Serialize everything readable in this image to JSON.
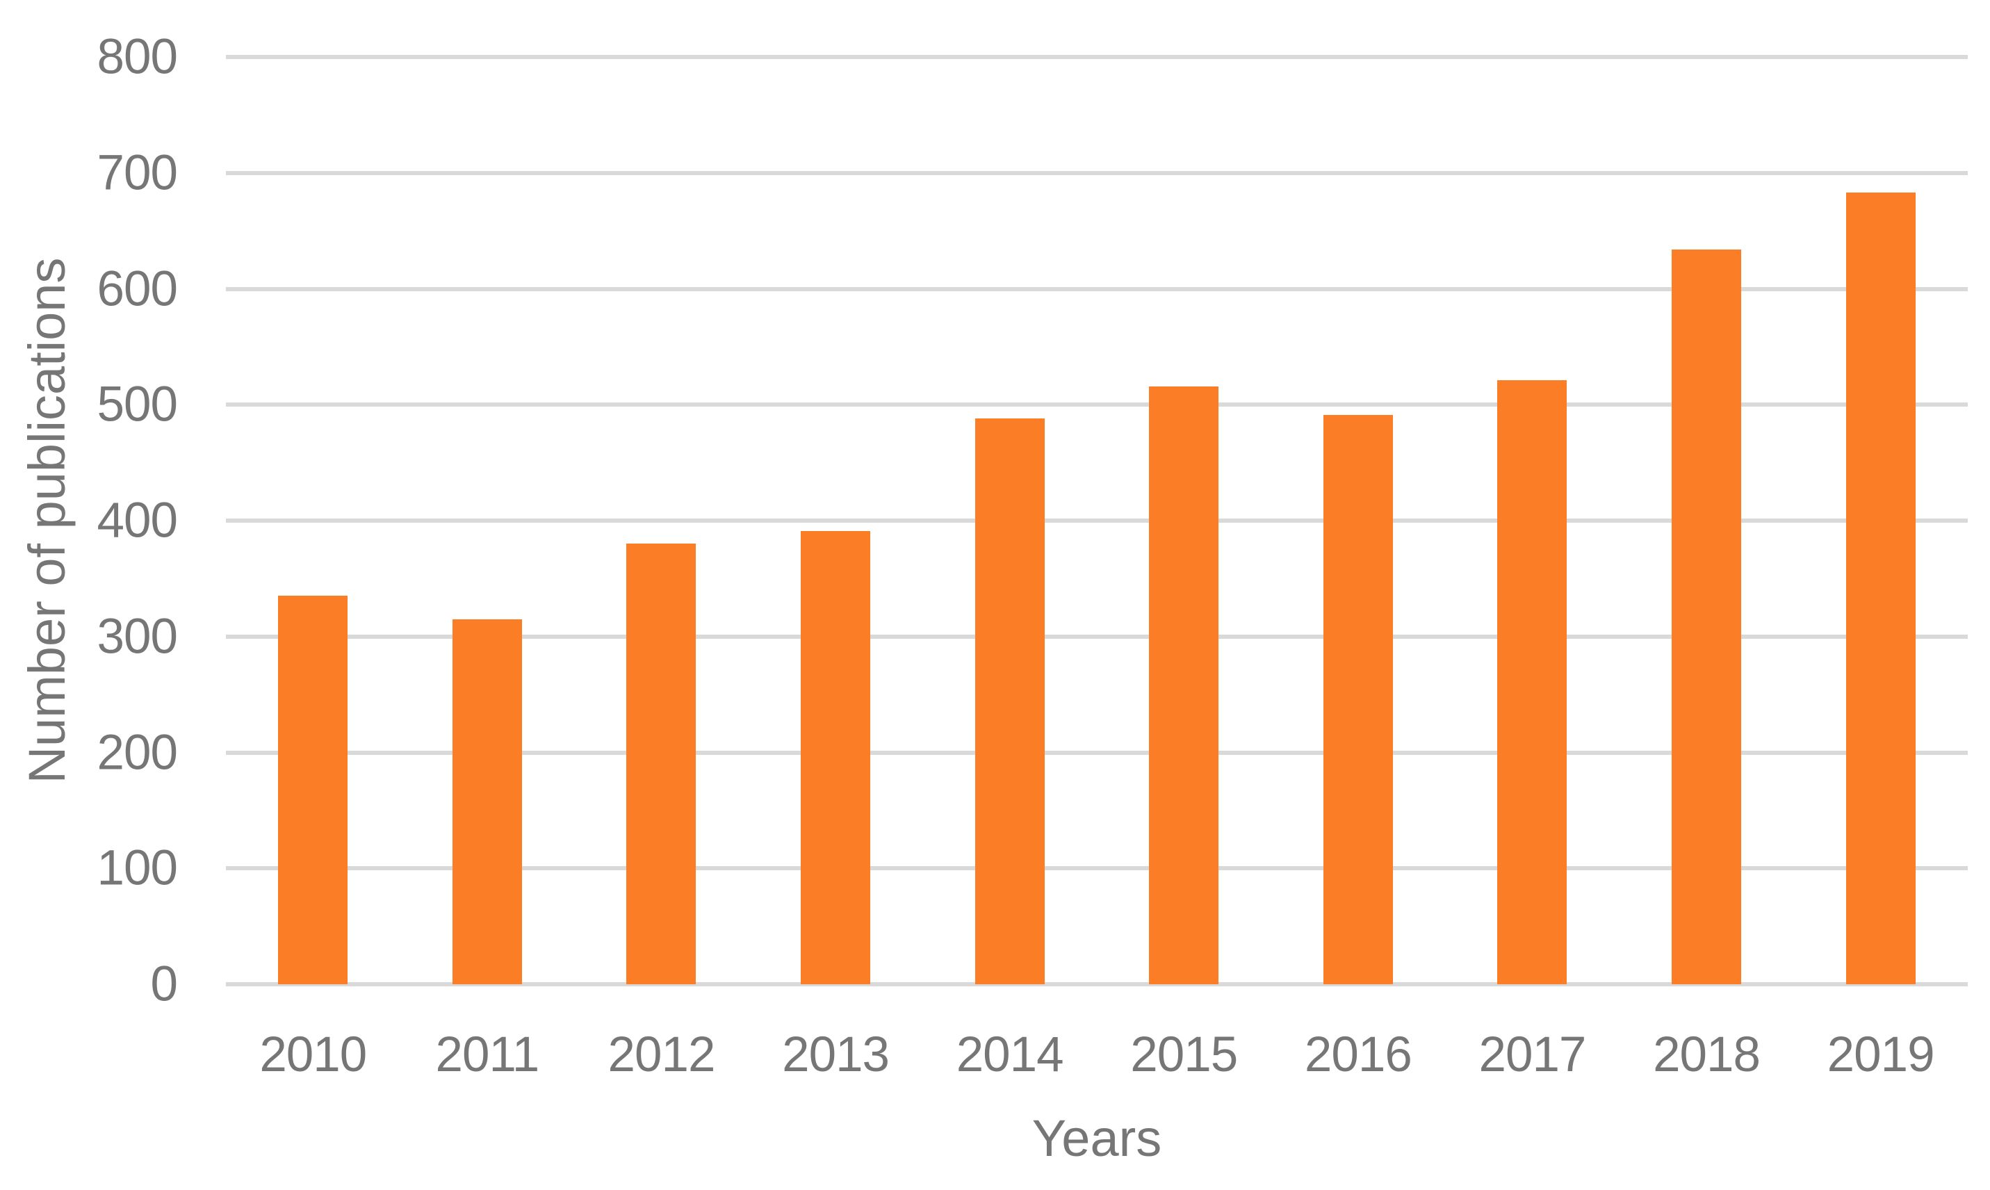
{
  "chart_data": {
    "type": "bar",
    "title": "",
    "categories": [
      "2010",
      "2011",
      "2012",
      "2013",
      "2014",
      "2015",
      "2016",
      "2017",
      "2018",
      "2019"
    ],
    "values": [
      335,
      315,
      380,
      391,
      488,
      516,
      491,
      521,
      634,
      683
    ],
    "xlabel": "Years",
    "ylabel": "Number of publications",
    "ylim": [
      0,
      800
    ],
    "yticks": [
      0,
      100,
      200,
      300,
      400,
      500,
      600,
      700,
      800
    ],
    "grid": true,
    "legend_position": "none",
    "colors": {
      "bar": "#FB7D26",
      "gridline": "#D9D9D9",
      "axis_text": "#767676",
      "background": "#FFFFFF"
    }
  }
}
